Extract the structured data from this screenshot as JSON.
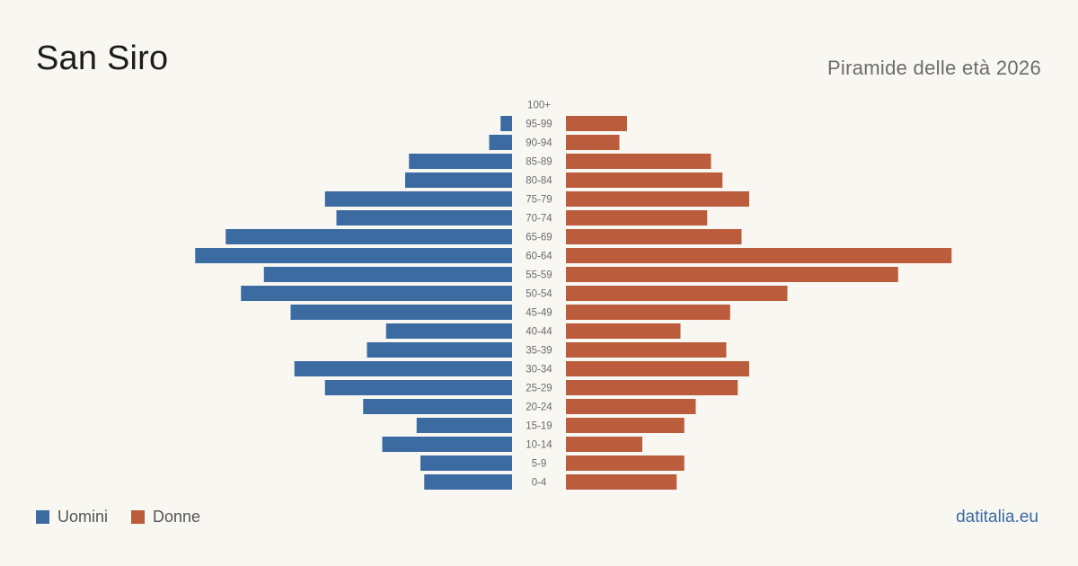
{
  "header": {
    "title": "San Siro",
    "subtitle": "Piramide delle età 2026"
  },
  "legend": {
    "men_label": "Uomini",
    "women_label": "Donne"
  },
  "footer": {
    "source": "datitalia.eu"
  },
  "colors": {
    "men": "#3b6ba0",
    "women": "#bb5c3c"
  },
  "chart_data": {
    "type": "bar",
    "orientation": "horizontal-pyramid",
    "categories": [
      "100+",
      "95-99",
      "90-94",
      "85-89",
      "80-84",
      "75-79",
      "70-74",
      "65-69",
      "60-64",
      "55-59",
      "50-54",
      "45-49",
      "40-44",
      "35-39",
      "30-34",
      "25-29",
      "20-24",
      "15-19",
      "10-14",
      "5-9",
      "0-4"
    ],
    "series": [
      {
        "name": "Uomini",
        "values": [
          0,
          3,
          6,
          27,
          28,
          49,
          46,
          75,
          83,
          65,
          71,
          58,
          33,
          38,
          57,
          49,
          39,
          25,
          34,
          24,
          23
        ]
      },
      {
        "name": "Donne",
        "values": [
          0,
          16,
          14,
          38,
          41,
          48,
          37,
          46,
          101,
          87,
          58,
          43,
          30,
          42,
          48,
          45,
          34,
          31,
          20,
          31,
          29
        ]
      }
    ],
    "legend_position": "bottom-left",
    "grid": false
  }
}
